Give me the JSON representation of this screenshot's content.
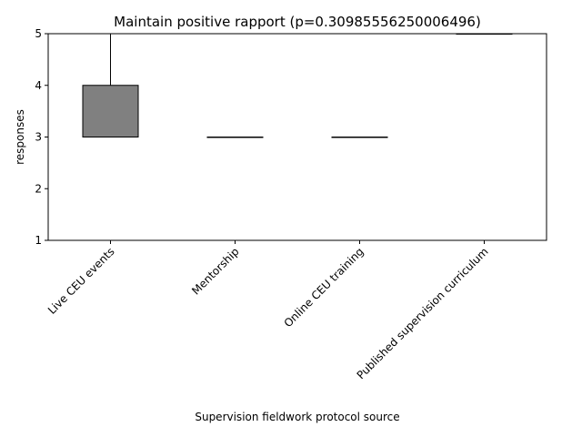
{
  "chart_data": {
    "type": "box",
    "title": "Maintain positive rapport (p=0.30985556250006496)",
    "xlabel": "Supervision fieldwork protocol source",
    "ylabel": "responses",
    "ylim": [
      1,
      5
    ],
    "yticks": [
      1,
      2,
      3,
      4,
      5
    ],
    "grid": false,
    "box_color": "#808080",
    "categories": [
      "Live CEU events",
      "Mentorship",
      "Online CEU training",
      "Published supervision curriculum"
    ],
    "boxes": [
      {
        "whisker_low": 3,
        "q1": 3,
        "median": 3,
        "q3": 4,
        "whisker_high": 5
      },
      {
        "whisker_low": 3,
        "q1": 3,
        "median": 3,
        "q3": 3,
        "whisker_high": 3
      },
      {
        "whisker_low": 3,
        "q1": 3,
        "median": 3,
        "q3": 3,
        "whisker_high": 3
      },
      {
        "whisker_low": 5,
        "q1": 5,
        "median": 5,
        "q3": 5,
        "whisker_high": 5
      }
    ]
  }
}
